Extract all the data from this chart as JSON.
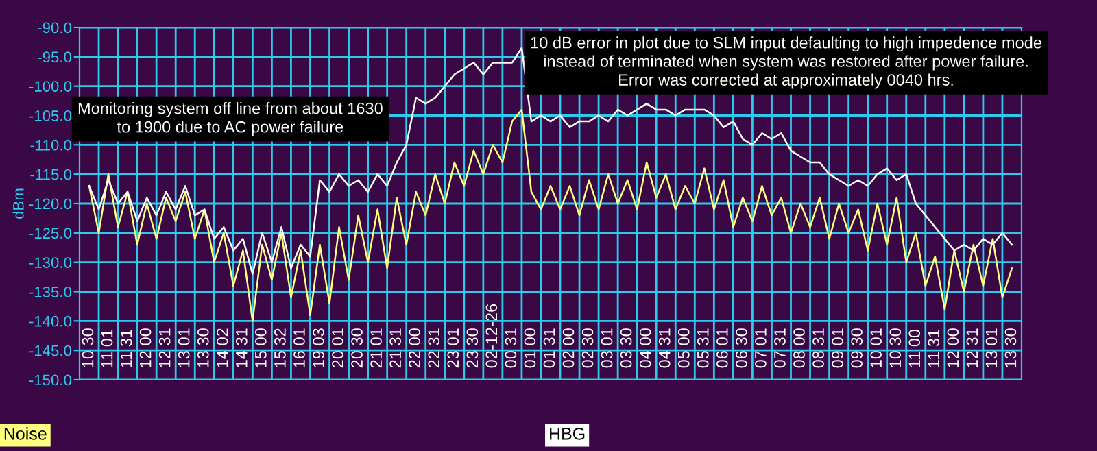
{
  "chart_data": {
    "type": "line",
    "ylabel": "dBm",
    "categories": [
      "10 30",
      null,
      "11 01",
      null,
      "11 31",
      null,
      "12 00",
      null,
      "12 31",
      null,
      "13 01",
      null,
      "13 30",
      null,
      "14 02",
      null,
      "14 31",
      null,
      "15 00",
      null,
      "15 32",
      null,
      "16 01",
      null,
      "19 03",
      null,
      "20 01",
      null,
      "20 30",
      null,
      "21 01",
      null,
      "21 31",
      null,
      "22 00",
      null,
      "22 31",
      null,
      "23 01",
      null,
      "23 30",
      null,
      "02-12-26",
      null,
      "00 31",
      null,
      "01 00",
      null,
      "01 31",
      null,
      "02 00",
      null,
      "02 30",
      null,
      "03 01",
      null,
      "03 30",
      null,
      "04 00",
      null,
      "04 31",
      null,
      "05 00",
      null,
      "05 31",
      null,
      "06 01",
      null,
      "06 30",
      null,
      "07 01",
      null,
      "07 31",
      null,
      "08 00",
      null,
      "08 31",
      null,
      "09 01",
      null,
      "09 30",
      null,
      "10 01",
      null,
      "10 30",
      null,
      "11 00",
      null,
      "11 31",
      null,
      "12 00",
      null,
      "12 31",
      null,
      "13 01",
      null,
      "13 30"
    ],
    "series": [
      {
        "name": "Noise",
        "color": "#ffff80",
        "values": [
          -117,
          -125,
          -115,
          -124,
          -118,
          -127,
          -120,
          -126,
          -119,
          -123,
          -118,
          -126,
          -121,
          -130,
          -125,
          -134,
          -128,
          -140,
          -127,
          -133,
          -125,
          -136,
          -128,
          -139,
          -127,
          -137,
          -124,
          -133,
          -122,
          -130,
          -121,
          -131,
          -119,
          -127,
          -118,
          -122,
          -115,
          -120,
          -113,
          -117,
          -111,
          -115,
          -110,
          -113,
          -106,
          -104,
          -118,
          -121,
          -117,
          -121,
          -117,
          -122,
          -116,
          -121,
          -115,
          -120,
          -116,
          -121,
          -113,
          -119,
          -115,
          -121,
          -117,
          -120,
          -114,
          -121,
          -116,
          -124,
          -119,
          -123,
          -117,
          -122,
          -119,
          -125,
          -120,
          -124,
          -119,
          -126,
          -120,
          -125,
          -121,
          -128,
          -120,
          -127,
          -119,
          -130,
          -125,
          -134,
          -129,
          -138,
          -128,
          -135,
          -127,
          -134,
          -126,
          -136,
          -131
        ]
      },
      {
        "name": "HBG",
        "color": "#ffffff",
        "values": [
          -117,
          -121,
          -116,
          -120,
          -118,
          -123,
          -119,
          -122,
          -118,
          -121,
          -117,
          -122,
          -121,
          -126,
          -124,
          -128,
          -126,
          -132,
          -125,
          -130,
          -124,
          -131,
          -127,
          -129,
          -116,
          -118,
          -115,
          -117,
          -116,
          -118,
          -115,
          -117,
          -113,
          -110,
          -102,
          -103,
          -102,
          -100,
          -98,
          -97,
          -96,
          -98,
          -96,
          -96,
          -96,
          -93.5,
          -106,
          -105,
          -106,
          -105,
          -107,
          -106,
          -106,
          -105,
          -106,
          -104,
          -105,
          -104,
          -103,
          -104,
          -104,
          -105,
          -104,
          -104,
          -104,
          -105,
          -107,
          -106,
          -109,
          -110,
          -108,
          -109,
          -108,
          -111,
          -112,
          -113,
          -113,
          -115,
          -116,
          -117,
          -116,
          -117,
          -115,
          -114,
          -116,
          -115,
          -120,
          -122,
          -124,
          -126,
          -128,
          -127,
          -128,
          -126,
          -127,
          -125,
          -127
        ]
      }
    ],
    "ylim": [
      -150,
      -90
    ],
    "yticks": [
      {
        "value": -150,
        "label": "-150.0"
      },
      {
        "value": -145,
        "label": "-145.0"
      },
      {
        "value": -140,
        "label": "-140.0"
      },
      {
        "value": -135,
        "label": "-135.0"
      },
      {
        "value": -130,
        "label": "-130.0"
      },
      {
        "value": -125,
        "label": "-125.0"
      },
      {
        "value": -120,
        "label": "-120.0"
      },
      {
        "value": -115,
        "label": "-115.0"
      },
      {
        "value": -110,
        "label": "-110.0"
      },
      {
        "value": -105,
        "label": "-105.0"
      },
      {
        "value": -100,
        "label": "-100.0"
      },
      {
        "value": -95,
        "label": "-95.0"
      },
      {
        "value": -90,
        "label": "-90.0"
      }
    ],
    "grid": true,
    "legend": "bottom",
    "annotations": [
      "Monitoring system off line from about 1630\nto 1900 due to AC power failure",
      "10 dB error in plot due to SLM input defaulting to high impedence mode\ninstead of terminated when system was restored after power failure.\nError was corrected at approximately 0040 hrs."
    ]
  }
}
